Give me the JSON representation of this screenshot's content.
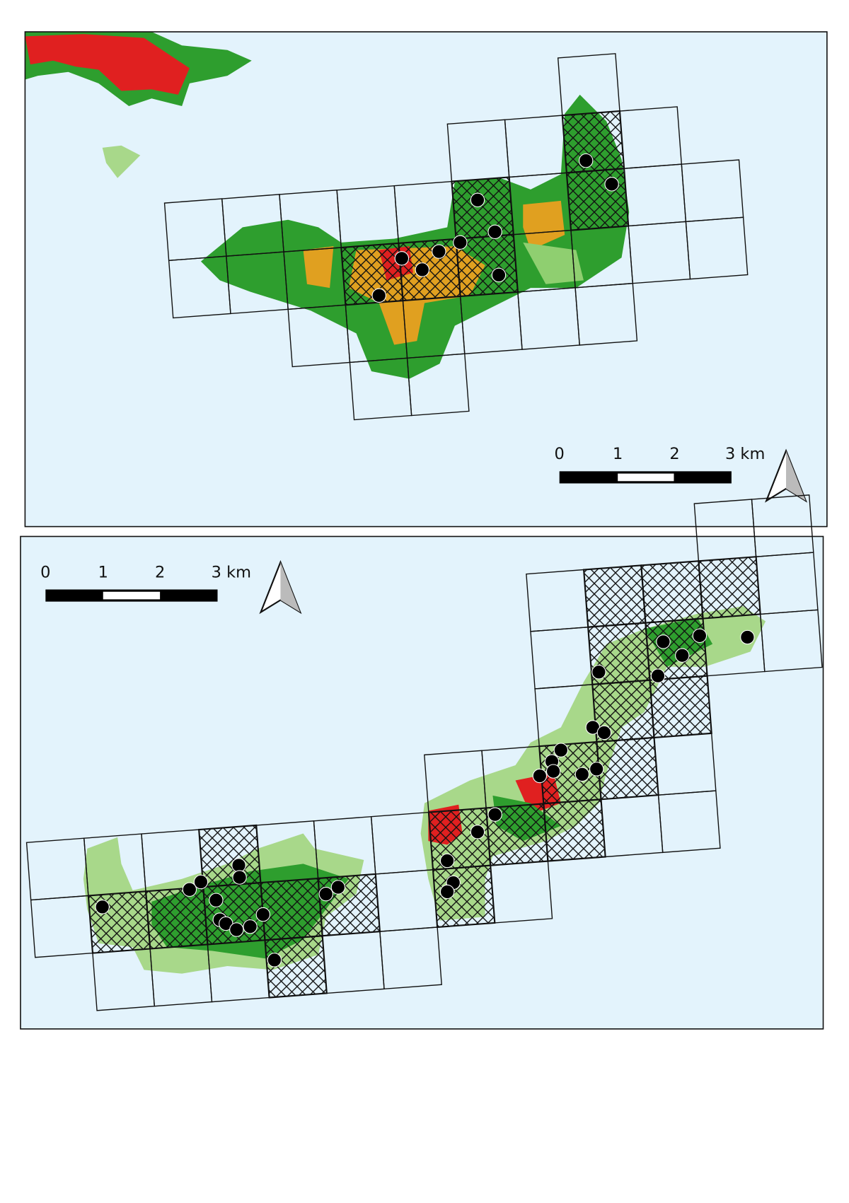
{
  "maps": [
    {
      "scale_bar": {
        "labels": [
          "0",
          "1",
          "2",
          "3 km"
        ]
      }
    },
    {
      "scale_bar": {
        "labels": [
          "0",
          "1",
          "2",
          "3 km"
        ]
      }
    }
  ]
}
